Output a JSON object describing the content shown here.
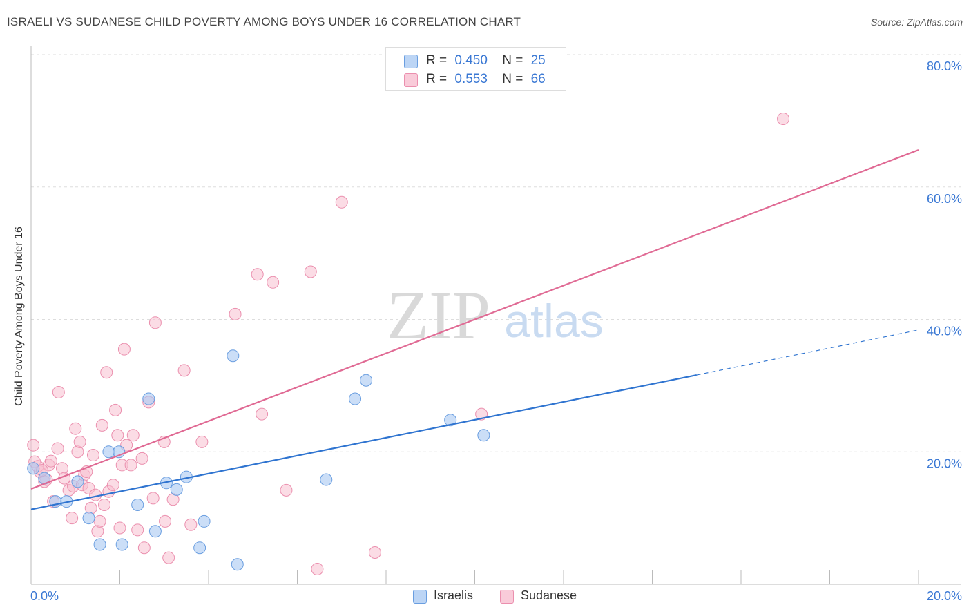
{
  "title": "ISRAELI VS SUDANESE CHILD POVERTY AMONG BOYS UNDER 16 CORRELATION CHART",
  "source": "Source: ZipAtlas.com",
  "watermark": {
    "zip": "ZIP",
    "atlas": "atlas"
  },
  "legend_top": [
    {
      "r_label": "R =",
      "r_value": "0.450",
      "n_label": "N =",
      "n_value": "25"
    },
    {
      "r_label": "R =",
      "r_value": "0.553",
      "n_label": "N =",
      "n_value": "66"
    }
  ],
  "legend_bottom": [
    "Israelis",
    "Sudanese"
  ],
  "colors": {
    "israelis_fill": "#a9c8f2",
    "israelis_stroke": "#6a9ee0",
    "israelis_line": "#2f74d0",
    "sudanese_fill": "#f7bfd0",
    "sudanese_stroke": "#eb8fae",
    "sudanese_line": "#e06a94",
    "tick_label": "#3a78d4",
    "grid": "#dddddd"
  },
  "chart_data": {
    "type": "scatter",
    "title": "ISRAELI VS SUDANESE CHILD POVERTY AMONG BOYS UNDER 16 CORRELATION CHART",
    "xlabel": "",
    "ylabel": "Child Poverty Among Boys Under 16",
    "xlim": [
      0,
      20
    ],
    "ylim": [
      0,
      80
    ],
    "x_tick_labels": [
      "0.0%",
      "20.0%"
    ],
    "y_ticks": [
      20,
      40,
      60,
      80
    ],
    "y_tick_labels": [
      "20.0%",
      "40.0%",
      "60.0%",
      "80.0%"
    ],
    "grid": true,
    "legend_position": "top-center",
    "series": [
      {
        "name": "Israelis",
        "points": [
          [
            0.05,
            17.5
          ],
          [
            0.3,
            16
          ],
          [
            0.55,
            12.5
          ],
          [
            0.8,
            12.5
          ],
          [
            1.05,
            15.5
          ],
          [
            1.3,
            10
          ],
          [
            1.55,
            6
          ],
          [
            1.75,
            20
          ],
          [
            1.98,
            20
          ],
          [
            2.05,
            6
          ],
          [
            2.4,
            12
          ],
          [
            2.65,
            28
          ],
          [
            2.8,
            8
          ],
          [
            3.05,
            15.3
          ],
          [
            3.28,
            14.3
          ],
          [
            3.5,
            16.2
          ],
          [
            3.8,
            5.5
          ],
          [
            3.9,
            9.5
          ],
          [
            4.55,
            34.5
          ],
          [
            4.65,
            3
          ],
          [
            6.65,
            15.8
          ],
          [
            7.3,
            28
          ],
          [
            7.55,
            30.8
          ],
          [
            9.45,
            24.8
          ],
          [
            10.2,
            22.5
          ]
        ],
        "trend": {
          "x0": 0,
          "y0": 11.3,
          "x1": 15,
          "y1": 31.6,
          "dashed_to_x": 20,
          "dashed_to_y": 38.4
        }
      },
      {
        "name": "Sudanese",
        "points": [
          [
            0.05,
            21
          ],
          [
            0.08,
            18.5
          ],
          [
            0.2,
            17
          ],
          [
            0.3,
            15.5
          ],
          [
            0.4,
            18
          ],
          [
            0.5,
            12.5
          ],
          [
            0.6,
            20.5
          ],
          [
            0.62,
            29
          ],
          [
            0.7,
            17.5
          ],
          [
            0.75,
            16
          ],
          [
            0.85,
            14.2
          ],
          [
            0.92,
            10
          ],
          [
            0.95,
            14.8
          ],
          [
            1.0,
            23.5
          ],
          [
            1.05,
            20
          ],
          [
            1.1,
            21.5
          ],
          [
            1.15,
            15
          ],
          [
            1.2,
            16.5
          ],
          [
            1.25,
            17
          ],
          [
            1.3,
            14.5
          ],
          [
            1.35,
            11.5
          ],
          [
            1.4,
            19.5
          ],
          [
            1.45,
            13.5
          ],
          [
            1.5,
            8
          ],
          [
            1.55,
            9.5
          ],
          [
            1.6,
            24
          ],
          [
            1.65,
            12
          ],
          [
            1.7,
            32
          ],
          [
            1.75,
            14
          ],
          [
            1.85,
            15
          ],
          [
            1.9,
            26.3
          ],
          [
            1.95,
            22.5
          ],
          [
            2.0,
            8.5
          ],
          [
            2.05,
            18
          ],
          [
            2.1,
            35.5
          ],
          [
            2.15,
            21
          ],
          [
            2.25,
            18
          ],
          [
            2.3,
            22.5
          ],
          [
            2.4,
            8.2
          ],
          [
            2.5,
            19
          ],
          [
            2.55,
            5.5
          ],
          [
            2.65,
            27.5
          ],
          [
            2.75,
            13
          ],
          [
            2.8,
            39.5
          ],
          [
            3.0,
            21.5
          ],
          [
            3.02,
            9.5
          ],
          [
            3.1,
            4
          ],
          [
            3.2,
            12.8
          ],
          [
            3.45,
            32.3
          ],
          [
            3.6,
            9
          ],
          [
            3.85,
            21.5
          ],
          [
            4.6,
            40.8
          ],
          [
            5.1,
            46.8
          ],
          [
            5.2,
            25.7
          ],
          [
            5.45,
            45.6
          ],
          [
            5.75,
            14.2
          ],
          [
            6.3,
            47.2
          ],
          [
            6.45,
            2.3
          ],
          [
            7.0,
            57.7
          ],
          [
            7.75,
            4.8
          ],
          [
            10.15,
            25.7
          ],
          [
            16.95,
            70.3
          ],
          [
            0.15,
            17.8
          ],
          [
            0.35,
            15.8
          ],
          [
            0.45,
            18.6
          ],
          [
            0.25,
            17.2
          ]
        ],
        "trend": {
          "x0": 0,
          "y0": 14.4,
          "x1": 20,
          "y1": 65.6
        }
      }
    ]
  }
}
